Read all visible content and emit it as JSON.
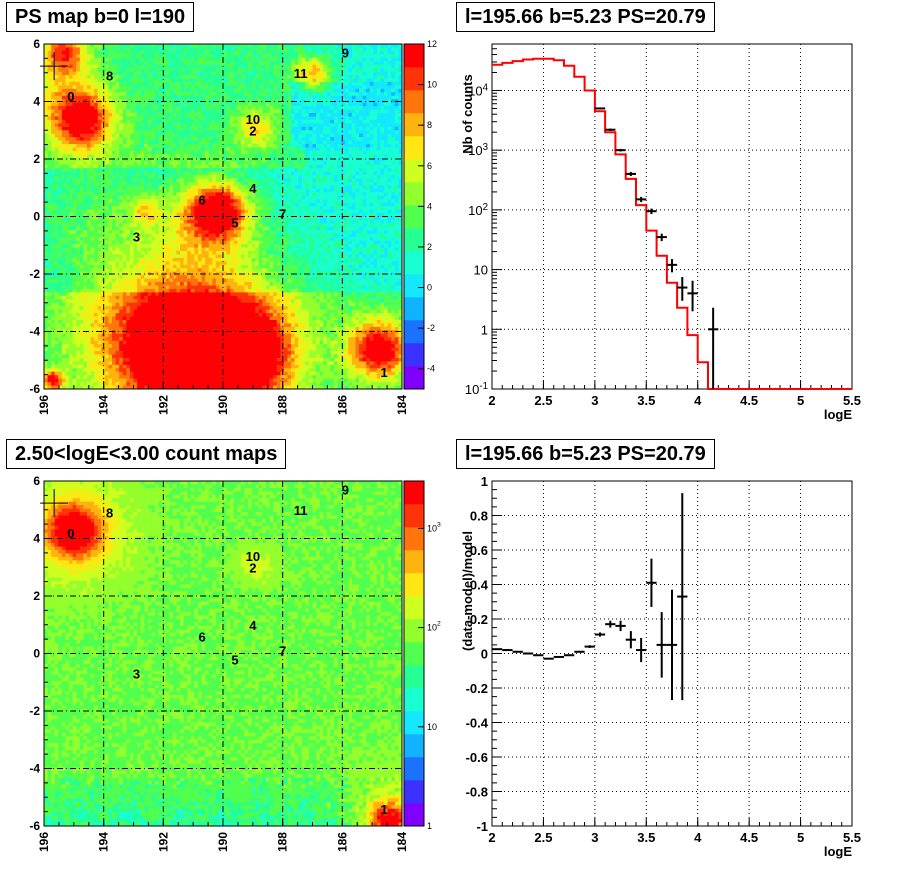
{
  "titles": {
    "tl": "PS map b=0 l=190",
    "tr": "l=195.66 b=5.23 PS=20.79",
    "bl": "2.50<logE<3.00 count maps",
    "br": "l=195.66 b=5.23 PS=20.79"
  },
  "colors": {
    "data": "#000000",
    "model": "#ff0000",
    "palette": [
      "#7f00ff",
      "#3b32ff",
      "#1a72ff",
      "#10b3ff",
      "#14e8ff",
      "#18ffd1",
      "#25ff93",
      "#51ff4e",
      "#93ff2d",
      "#cfff1e",
      "#ffe812",
      "#ffb30e",
      "#ff740b",
      "#ff3308",
      "#ff0005"
    ]
  },
  "chart_data": [
    {
      "type": "heatmap",
      "panel": "ps-map",
      "xlim": [
        196,
        184
      ],
      "ylim": [
        -6,
        6
      ],
      "xticks": [
        "196",
        "194",
        "192",
        "190",
        "188",
        "186",
        "184"
      ],
      "yticks": [
        "6",
        "4",
        "2",
        "0",
        "-2",
        "-4",
        "-6"
      ],
      "zlim": [
        -5,
        12
      ],
      "zticks": [
        "12",
        "10",
        "8",
        "6",
        "4",
        "2",
        "0",
        "-2",
        "-4"
      ],
      "sources": [
        {
          "label": "0",
          "l": 195.1,
          "b": 4.2
        },
        {
          "label": "1",
          "l": 184.6,
          "b": -5.4
        },
        {
          "label": "2",
          "l": 189.0,
          "b": 3.0
        },
        {
          "label": "3",
          "l": 192.9,
          "b": -0.7
        },
        {
          "label": "4",
          "l": 189.0,
          "b": 1.0
        },
        {
          "label": "5",
          "l": 189.6,
          "b": -0.2
        },
        {
          "label": "6",
          "l": 190.7,
          "b": 0.6
        },
        {
          "label": "7",
          "l": 188.0,
          "b": 0.1
        },
        {
          "label": "8",
          "l": 193.8,
          "b": 4.9
        },
        {
          "label": "9",
          "l": 185.9,
          "b": 5.7
        },
        {
          "label": "10",
          "l": 189.0,
          "b": 3.4
        },
        {
          "label": "11",
          "l": 187.4,
          "b": 5.0
        }
      ]
    },
    {
      "type": "line",
      "panel": "spectrum",
      "x_range": [
        2,
        5.5
      ],
      "ylim": [
        0.1,
        60000
      ],
      "log_y": true,
      "xlabel": "logE",
      "ylabel": "Nb of counts",
      "xticks": [
        "2",
        "2.5",
        "3",
        "3.5",
        "4",
        "4.5",
        "5",
        "5.5"
      ],
      "yticks": [
        "10^4",
        "10^3",
        "10^2",
        "10",
        "1",
        "10^-1"
      ],
      "model_bin_edges": [
        2.0,
        2.1,
        2.2,
        2.3,
        2.4,
        2.5,
        2.6,
        2.7,
        2.8,
        2.9,
        3.0,
        3.1,
        3.2,
        3.3,
        3.4,
        3.5,
        3.6,
        3.7,
        3.8,
        3.9,
        4.0,
        4.1,
        4.2,
        4.3,
        4.4,
        4.5,
        4.6,
        4.7,
        4.8,
        4.9,
        5.0,
        5.1,
        5.2,
        5.3,
        5.4,
        5.5
      ],
      "model_values": [
        27000,
        29000,
        31000,
        33000,
        34000,
        34000,
        32000,
        26000,
        17000,
        10000,
        4500,
        2000,
        850,
        330,
        120,
        45,
        17,
        6,
        2.3,
        0.8,
        0.28,
        0.1,
        0.1,
        0.1,
        0.1,
        0.1,
        0.1,
        0.1,
        0.1,
        0.1,
        0.1,
        0.1,
        0.1,
        0.1,
        0.1
      ],
      "data_points": [
        {
          "x": 3.05,
          "y": 5000,
          "ylo": 4850,
          "yhi": 5150
        },
        {
          "x": 3.15,
          "y": 2200,
          "ylo": 2100,
          "yhi": 2300
        },
        {
          "x": 3.25,
          "y": 1000,
          "ylo": 950,
          "yhi": 1050
        },
        {
          "x": 3.35,
          "y": 400,
          "ylo": 370,
          "yhi": 430
        },
        {
          "x": 3.45,
          "y": 150,
          "ylo": 135,
          "yhi": 165
        },
        {
          "x": 3.55,
          "y": 95,
          "ylo": 85,
          "yhi": 105
        },
        {
          "x": 3.65,
          "y": 35,
          "ylo": 30,
          "yhi": 40
        },
        {
          "x": 3.75,
          "y": 12,
          "ylo": 9,
          "yhi": 15
        },
        {
          "x": 3.85,
          "y": 5,
          "ylo": 3,
          "yhi": 7.5
        },
        {
          "x": 3.95,
          "y": 4,
          "ylo": 2,
          "yhi": 6.5
        },
        {
          "x": 4.15,
          "y": 1,
          "ylo": 0.1,
          "yhi": 2.3
        }
      ]
    },
    {
      "type": "heatmap",
      "panel": "count-map",
      "xlim": [
        196,
        184
      ],
      "ylim": [
        -6,
        6
      ],
      "xticks": [
        "196",
        "194",
        "192",
        "190",
        "188",
        "186",
        "184"
      ],
      "yticks": [
        "6",
        "4",
        "2",
        "0",
        "-2",
        "-4",
        "-6"
      ],
      "zscale": "log",
      "zticks": [
        "10^3",
        "10^2",
        "10",
        "1"
      ]
    },
    {
      "type": "scatter",
      "panel": "residuals",
      "x_range": [
        2,
        5.5
      ],
      "ylim": [
        -1,
        1
      ],
      "xlabel": "logE",
      "ylabel": "(data-model)/model",
      "xticks": [
        "2",
        "2.5",
        "3",
        "3.5",
        "4",
        "4.5",
        "5",
        "5.5"
      ],
      "yticks": [
        "1",
        "0.8",
        "0.6",
        "0.4",
        "0.2",
        "0",
        "-0.2",
        "-0.4",
        "-0.6",
        "-0.8",
        "-1"
      ],
      "points": [
        {
          "x": 2.05,
          "y": 0.025,
          "err": 0.003
        },
        {
          "x": 2.15,
          "y": 0.02,
          "err": 0.003
        },
        {
          "x": 2.25,
          "y": 0.01,
          "err": 0.003
        },
        {
          "x": 2.35,
          "y": 0.0,
          "err": 0.003
        },
        {
          "x": 2.45,
          "y": -0.01,
          "err": 0.003
        },
        {
          "x": 2.55,
          "y": -0.03,
          "err": 0.003
        },
        {
          "x": 2.65,
          "y": -0.02,
          "err": 0.003
        },
        {
          "x": 2.75,
          "y": -0.01,
          "err": 0.004
        },
        {
          "x": 2.85,
          "y": 0.01,
          "err": 0.005
        },
        {
          "x": 2.95,
          "y": 0.04,
          "err": 0.008
        },
        {
          "x": 3.05,
          "y": 0.11,
          "err": 0.012
        },
        {
          "x": 3.15,
          "y": 0.17,
          "err": 0.02
        },
        {
          "x": 3.25,
          "y": 0.16,
          "err": 0.03
        },
        {
          "x": 3.35,
          "y": 0.08,
          "err": 0.05
        },
        {
          "x": 3.45,
          "y": 0.02,
          "err": 0.07
        },
        {
          "x": 3.55,
          "y": 0.41,
          "err": 0.14
        },
        {
          "x": 3.65,
          "y": 0.05,
          "err": 0.19
        },
        {
          "x": 3.75,
          "y": 0.05,
          "err": 0.32
        },
        {
          "x": 3.85,
          "y": 0.33,
          "err": 0.6
        }
      ]
    }
  ]
}
